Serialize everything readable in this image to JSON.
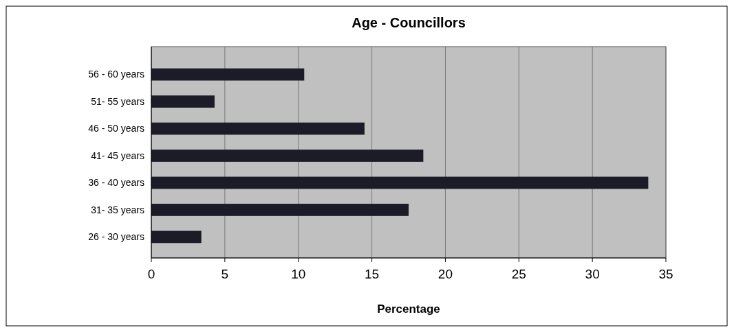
{
  "chart_data": {
    "type": "bar",
    "orientation": "horizontal",
    "title": "Age - Councillors",
    "xlabel": "Percentage",
    "categories": [
      "56 - 60 years",
      "51- 55 years",
      "46 - 50 years",
      "41- 45 years",
      "36 - 40 years",
      "31- 35 years",
      "26 - 30 years"
    ],
    "values": [
      10.4,
      4.3,
      14.5,
      18.5,
      33.8,
      17.5,
      3.4
    ],
    "color": "#1c1c28",
    "xlim": [
      0,
      35
    ],
    "xticks": [
      0,
      5,
      10,
      15,
      20,
      25,
      30,
      35
    ],
    "grid": "x"
  }
}
